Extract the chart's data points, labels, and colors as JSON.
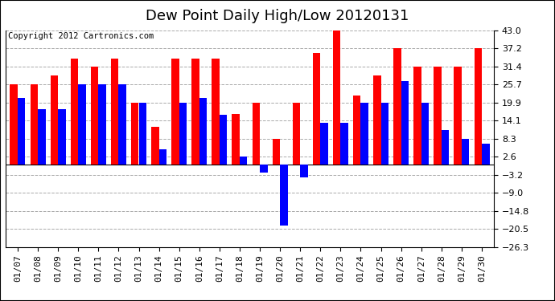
{
  "title": "Dew Point Daily High/Low 20120131",
  "copyright": "Copyright 2012 Cartronics.com",
  "dates": [
    "01/07",
    "01/08",
    "01/09",
    "01/10",
    "01/11",
    "01/12",
    "01/13",
    "01/14",
    "01/15",
    "01/16",
    "01/17",
    "01/18",
    "01/19",
    "01/20",
    "01/21",
    "01/22",
    "01/23",
    "01/24",
    "01/25",
    "01/26",
    "01/27",
    "01/28",
    "01/29",
    "01/30"
  ],
  "high": [
    25.7,
    25.7,
    28.5,
    33.8,
    31.4,
    33.8,
    19.9,
    12.2,
    33.8,
    33.8,
    33.8,
    16.3,
    19.9,
    8.3,
    19.9,
    35.6,
    44.6,
    22.1,
    28.5,
    37.2,
    31.4,
    31.4,
    31.4,
    37.2
  ],
  "low": [
    21.2,
    17.6,
    17.6,
    25.7,
    25.7,
    25.7,
    19.9,
    5.0,
    19.9,
    21.2,
    15.8,
    2.6,
    -2.6,
    -19.4,
    -4.0,
    13.3,
    13.3,
    19.9,
    19.9,
    26.6,
    19.9,
    11.0,
    8.3,
    6.8
  ],
  "ylim": [
    -26.3,
    43.0
  ],
  "yticks": [
    43.0,
    37.2,
    31.4,
    25.7,
    19.9,
    14.1,
    8.3,
    2.6,
    -3.2,
    -9.0,
    -14.8,
    -20.5,
    -26.3
  ],
  "bar_width": 0.38,
  "high_color": "#ff0000",
  "low_color": "#0000ff",
  "bg_color": "#ffffff",
  "grid_color": "#aaaaaa",
  "title_fontsize": 13,
  "copyright_fontsize": 7.5,
  "tick_fontsize": 8
}
